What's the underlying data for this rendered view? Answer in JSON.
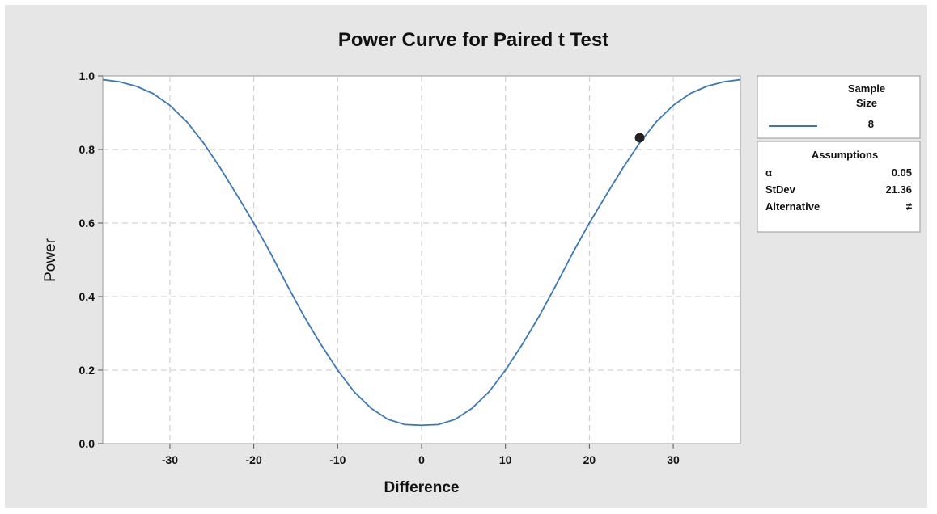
{
  "chart_data": {
    "type": "line",
    "title": "Power Curve for Paired t Test",
    "xlabel": "Difference",
    "ylabel": "Power",
    "xlim": [
      -38,
      38
    ],
    "ylim": [
      0,
      1
    ],
    "xticks": [
      -30,
      -20,
      -10,
      0,
      10,
      20,
      30
    ],
    "xtick_labels": [
      "-30",
      "-20",
      "-10",
      "0",
      "10",
      "20",
      "30"
    ],
    "yticks": [
      0,
      0.2,
      0.4,
      0.6,
      0.8,
      1.0
    ],
    "ytick_labels": [
      "0.0",
      "0.2",
      "0.4",
      "0.6",
      "0.8",
      "1.0"
    ],
    "grid": true,
    "series": [
      {
        "name": "8",
        "color": "#3a77c2",
        "x": [
          -38,
          -36,
          -34,
          -32,
          -30,
          -28,
          -26,
          -24,
          -22,
          -20,
          -18,
          -16,
          -14,
          -12,
          -10,
          -8,
          -6,
          -4,
          -2,
          0,
          2,
          4,
          6,
          8,
          10,
          12,
          14,
          16,
          18,
          20,
          22,
          24,
          26,
          28,
          30,
          32,
          34,
          36,
          38
        ],
        "y": [
          0.99,
          0.984,
          0.972,
          0.952,
          0.92,
          0.876,
          0.818,
          0.75,
          0.676,
          0.6,
          0.518,
          0.43,
          0.346,
          0.27,
          0.2,
          0.14,
          0.096,
          0.066,
          0.052,
          0.05,
          0.052,
          0.066,
          0.096,
          0.14,
          0.2,
          0.27,
          0.346,
          0.43,
          0.518,
          0.6,
          0.676,
          0.75,
          0.818,
          0.876,
          0.92,
          0.952,
          0.972,
          0.984,
          0.99
        ]
      }
    ],
    "marker_point": {
      "x": 26,
      "y": 0.832
    },
    "legend": {
      "title_line1": "Sample",
      "title_line2": "Size",
      "entry_label": "8"
    },
    "assumptions": {
      "title": "Assumptions",
      "rows": [
        {
          "label": "α",
          "value": "0.05"
        },
        {
          "label": "StDev",
          "value": "21.36"
        },
        {
          "label": "Alternative",
          "value": "≠"
        }
      ]
    }
  }
}
